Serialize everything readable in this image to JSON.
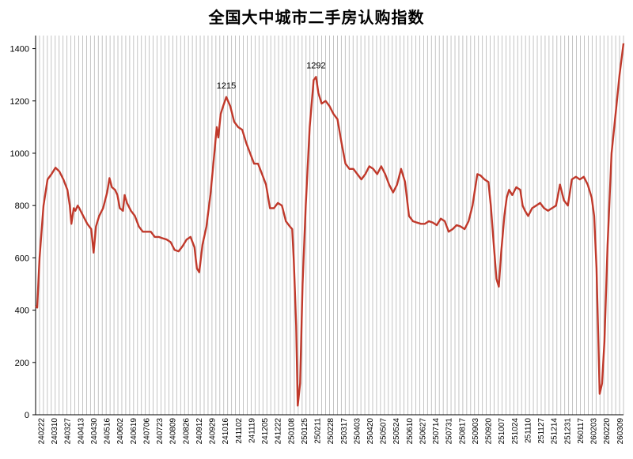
{
  "chart_data": {
    "type": "line",
    "title": "全国大中城市二手房认购指数",
    "xlabel": "",
    "ylabel": "",
    "ylim": [
      0,
      1450
    ],
    "yticks": [
      0,
      200,
      400,
      600,
      800,
      1000,
      1200,
      1400
    ],
    "grid": {
      "vertical": true,
      "horizontal": false
    },
    "line_color": "#c0392b",
    "x_tick_labels": [
      "240222",
      "240310",
      "240327",
      "240413",
      "240430",
      "240516",
      "240602",
      "240619",
      "240706",
      "240723",
      "240809",
      "240826",
      "240912",
      "240929",
      "241016",
      "241102",
      "241119",
      "241205",
      "241222",
      "250108",
      "250125",
      "250211",
      "250228",
      "250317",
      "250403",
      "250420",
      "250507",
      "250524",
      "250610",
      "250627",
      "250714",
      "250731",
      "250817",
      "250903",
      "250920",
      "251007",
      "251024",
      "251110",
      "251127",
      "251214",
      "251231",
      "260117",
      "260203",
      "260220",
      "260309"
    ],
    "series": [
      {
        "points": [
          [
            0,
            415
          ],
          [
            0.2,
            410
          ],
          [
            0.5,
            600
          ],
          [
            1,
            800
          ],
          [
            1.5,
            900
          ],
          [
            2,
            920
          ],
          [
            2.5,
            945
          ],
          [
            3,
            930
          ],
          [
            3.5,
            900
          ],
          [
            4,
            860
          ],
          [
            4.3,
            800
          ],
          [
            4.5,
            730
          ],
          [
            4.8,
            790
          ],
          [
            5,
            780
          ],
          [
            5.3,
            800
          ],
          [
            5.5,
            790
          ],
          [
            6,
            760
          ],
          [
            6.5,
            730
          ],
          [
            7,
            710
          ],
          [
            7.3,
            620
          ],
          [
            7.6,
            720
          ],
          [
            8,
            760
          ],
          [
            8.5,
            790
          ],
          [
            9,
            850
          ],
          [
            9.3,
            905
          ],
          [
            9.6,
            870
          ],
          [
            10,
            860
          ],
          [
            10.3,
            840
          ],
          [
            10.6,
            790
          ],
          [
            11,
            780
          ],
          [
            11.2,
            840
          ],
          [
            11.5,
            810
          ],
          [
            12,
            780
          ],
          [
            12.5,
            760
          ],
          [
            13,
            720
          ],
          [
            13.5,
            700
          ],
          [
            14,
            700
          ],
          [
            14.5,
            700
          ],
          [
            15,
            680
          ],
          [
            15.5,
            680
          ],
          [
            16,
            675
          ],
          [
            16.5,
            670
          ],
          [
            17,
            660
          ],
          [
            17.5,
            630
          ],
          [
            18,
            625
          ],
          [
            18.5,
            645
          ],
          [
            19,
            670
          ],
          [
            19.5,
            680
          ],
          [
            20,
            640
          ],
          [
            20.3,
            560
          ],
          [
            20.6,
            545
          ],
          [
            21,
            650
          ],
          [
            21.5,
            720
          ],
          [
            22,
            840
          ],
          [
            22.5,
            1000
          ],
          [
            22.8,
            1100
          ],
          [
            23,
            1060
          ],
          [
            23.3,
            1150
          ],
          [
            23.6,
            1180
          ],
          [
            24,
            1215
          ],
          [
            24.5,
            1180
          ],
          [
            25,
            1120
          ],
          [
            25.5,
            1100
          ],
          [
            26,
            1090
          ],
          [
            26.5,
            1040
          ],
          [
            27,
            1000
          ],
          [
            27.5,
            960
          ],
          [
            28,
            960
          ],
          [
            28.5,
            920
          ],
          [
            29,
            880
          ],
          [
            29.5,
            790
          ],
          [
            30,
            790
          ],
          [
            30.5,
            810
          ],
          [
            31,
            800
          ],
          [
            31.5,
            740
          ],
          [
            32,
            720
          ],
          [
            32.3,
            710
          ],
          [
            32.5,
            590
          ],
          [
            32.8,
            340
          ],
          [
            33,
            35
          ],
          [
            33.3,
            120
          ],
          [
            33.6,
            500
          ],
          [
            34,
            800
          ],
          [
            34.5,
            1100
          ],
          [
            35,
            1280
          ],
          [
            35.3,
            1292
          ],
          [
            35.6,
            1230
          ],
          [
            36,
            1190
          ],
          [
            36.5,
            1200
          ],
          [
            37,
            1180
          ],
          [
            37.5,
            1150
          ],
          [
            38,
            1130
          ],
          [
            38.5,
            1040
          ],
          [
            39,
            960
          ],
          [
            39.5,
            940
          ],
          [
            40,
            940
          ],
          [
            40.5,
            920
          ],
          [
            41,
            900
          ],
          [
            41.5,
            920
          ],
          [
            42,
            950
          ],
          [
            42.5,
            940
          ],
          [
            43,
            920
          ],
          [
            43.5,
            950
          ],
          [
            44,
            920
          ],
          [
            44.5,
            880
          ],
          [
            45,
            850
          ],
          [
            45.5,
            880
          ],
          [
            46,
            940
          ],
          [
            46.5,
            890
          ],
          [
            47,
            760
          ],
          [
            47.5,
            740
          ],
          [
            48,
            735
          ],
          [
            48.5,
            730
          ],
          [
            49,
            730
          ],
          [
            49.5,
            740
          ],
          [
            50,
            735
          ],
          [
            50.5,
            725
          ],
          [
            51,
            750
          ],
          [
            51.5,
            740
          ],
          [
            52,
            700
          ],
          [
            52.5,
            710
          ],
          [
            53,
            725
          ],
          [
            53.5,
            720
          ],
          [
            54,
            710
          ],
          [
            54.5,
            740
          ],
          [
            55,
            800
          ],
          [
            55.3,
            860
          ],
          [
            55.6,
            920
          ],
          [
            56,
            915
          ],
          [
            56.5,
            900
          ],
          [
            57,
            890
          ],
          [
            57.3,
            800
          ],
          [
            57.6,
            680
          ],
          [
            58,
            520
          ],
          [
            58.3,
            490
          ],
          [
            58.6,
            620
          ],
          [
            59,
            760
          ],
          [
            59.3,
            830
          ],
          [
            59.6,
            860
          ],
          [
            60,
            840
          ],
          [
            60.5,
            870
          ],
          [
            61,
            860
          ],
          [
            61.3,
            800
          ],
          [
            61.6,
            780
          ],
          [
            62,
            760
          ],
          [
            62.5,
            790
          ],
          [
            63,
            800
          ],
          [
            63.5,
            810
          ],
          [
            64,
            790
          ],
          [
            64.5,
            780
          ],
          [
            65,
            790
          ],
          [
            65.5,
            800
          ],
          [
            66,
            880
          ],
          [
            66.5,
            820
          ],
          [
            67,
            800
          ],
          [
            67.5,
            900
          ],
          [
            68,
            910
          ],
          [
            68.5,
            900
          ],
          [
            69,
            910
          ],
          [
            69.5,
            880
          ],
          [
            70,
            830
          ],
          [
            70.3,
            760
          ],
          [
            70.6,
            560
          ],
          [
            71,
            80
          ],
          [
            71.3,
            120
          ],
          [
            71.6,
            280
          ],
          [
            72,
            650
          ],
          [
            72.5,
            1000
          ],
          [
            73,
            1150
          ],
          [
            73.5,
            1300
          ],
          [
            74,
            1420
          ]
        ]
      }
    ],
    "x_domain": [
      0,
      74
    ],
    "annotations": [
      {
        "text": "1215",
        "x": 24,
        "y": 1215
      },
      {
        "text": "1292",
        "x": 35.3,
        "y": 1292
      }
    ]
  }
}
